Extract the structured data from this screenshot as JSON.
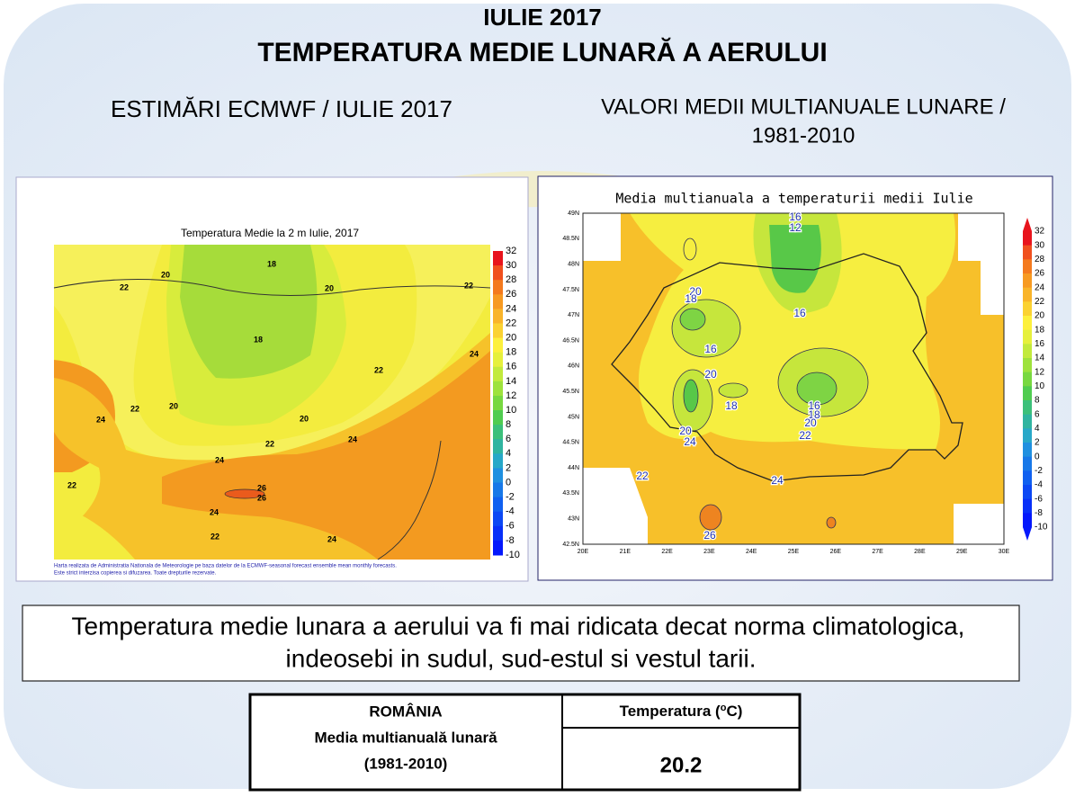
{
  "header": {
    "title_line1": "IULIE 2017",
    "title_line2": "TEMPERATURA MEDIE LUNARĂ A AERULUI"
  },
  "left_heading": "ESTIMĂRI ECMWF / IULIE 2017",
  "right_heading": [
    "VALORI MEDII MULTIANUALE LUNARE /",
    "1981-2010"
  ],
  "left_map": {
    "title": "Temperatura Medie la 2 m Iulie, 2017",
    "colorbar": [
      32,
      30,
      28,
      26,
      24,
      22,
      20,
      18,
      16,
      14,
      12,
      10,
      8,
      6,
      4,
      2,
      0,
      -2,
      -4,
      -6,
      -8,
      -10
    ],
    "contour_labels": [
      "18",
      "20",
      "20",
      "22",
      "22",
      "18",
      "22",
      "24",
      "22",
      "20",
      "20",
      "24",
      "22",
      "24",
      "24",
      "26",
      "26",
      "22",
      "24",
      "22",
      "24"
    ],
    "footnote": [
      "Harta realizata de Administratia Nationala de Meteorologie pe baza datelor de la ECMWF-seasonal forecast ensemble mean monthly forecasts.",
      "Este strict interzisa copierea si difuzarea. Toate drepturile rezervate."
    ]
  },
  "right_map": {
    "title": "Media multianuala a temperaturii medii Iulie",
    "lat_labels": [
      "49N",
      "48.5N",
      "48N",
      "47.5N",
      "47N",
      "46.5N",
      "46N",
      "45.5N",
      "45N",
      "44.5N",
      "44N",
      "43.5N",
      "43N",
      "42.5N"
    ],
    "lon_labels": [
      "20E",
      "21E",
      "22E",
      "23E",
      "24E",
      "25E",
      "26E",
      "27E",
      "28E",
      "29E",
      "30E"
    ],
    "colorbar": [
      32,
      30,
      28,
      26,
      24,
      22,
      20,
      18,
      16,
      14,
      12,
      10,
      8,
      6,
      4,
      2,
      0,
      -2,
      -4,
      -6,
      -8,
      -10
    ],
    "contour_labels": [
      "16",
      "12",
      "20",
      "18",
      "16",
      "16",
      "20",
      "18",
      "16",
      "18",
      "20",
      "22",
      "20",
      "24",
      "22",
      "24",
      "26"
    ]
  },
  "statement": [
    "Temperatura medie lunara a aerului va fi mai ridicata decat norma climatologica,",
    "indeosebi in sudul, sud-estul si vestul tarii."
  ],
  "table": {
    "left_cell": [
      "ROMÂNIA",
      "Media multianuală lunară",
      "(1981-2010)"
    ],
    "right_header": {
      "text": "Temperatura (",
      "sup": "o",
      "end": "C)"
    },
    "value": "20.2"
  }
}
